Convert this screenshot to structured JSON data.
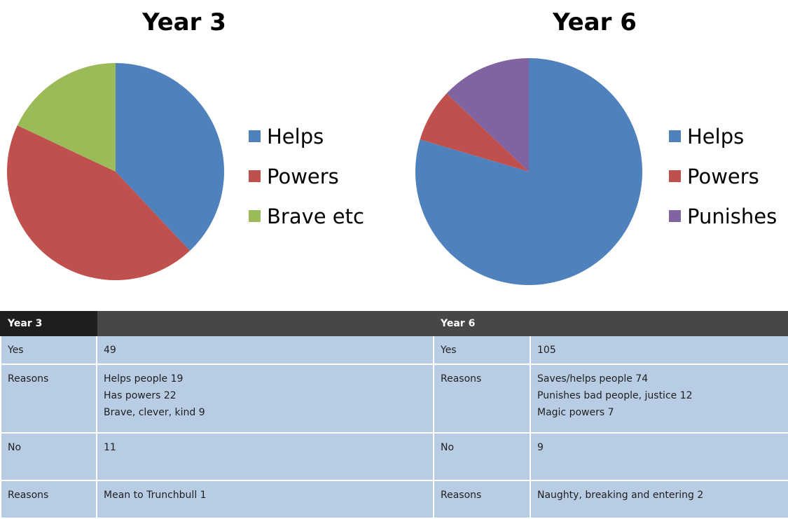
{
  "chart_data": [
    {
      "type": "pie",
      "title": "Year 3",
      "categories": [
        "Helps",
        "Powers",
        "Brave etc"
      ],
      "values": [
        19,
        22,
        9
      ],
      "colors": [
        "#4f81bd",
        "#c0504d",
        "#9bbb59"
      ],
      "legend_position": "right"
    },
    {
      "type": "pie",
      "title": "Year 6",
      "categories": [
        "Helps",
        "Powers",
        "Punishes"
      ],
      "values": [
        74,
        7,
        12
      ],
      "colors": [
        "#4f81bd",
        "#c0504d",
        "#8064a2"
      ],
      "slice_order": [
        0,
        1,
        2
      ],
      "legend_position": "right"
    }
  ],
  "table": {
    "header": [
      "Year 3",
      "",
      "Year 6",
      ""
    ],
    "rows": [
      {
        "cells": [
          [
            "Yes"
          ],
          [
            "49"
          ],
          [
            "Yes"
          ],
          [
            "105"
          ]
        ]
      },
      {
        "cells": [
          [
            "Reasons"
          ],
          [
            "Helps people  19",
            "Has powers 22",
            "Brave, clever, kind 9"
          ],
          [
            "Reasons"
          ],
          [
            "Saves/helps people 74",
            "Punishes bad people,  justice 12",
            "Magic powers 7"
          ]
        ]
      },
      {
        "cells": [
          [
            "No"
          ],
          [
            "11"
          ],
          [
            "No"
          ],
          [
            "9"
          ]
        ]
      },
      {
        "cells": [
          [
            "Reasons"
          ],
          [
            "Mean to Trunchbull 1"
          ],
          [
            "Reasons"
          ],
          [
            "Naughty, breaking and entering 2"
          ]
        ]
      }
    ]
  }
}
